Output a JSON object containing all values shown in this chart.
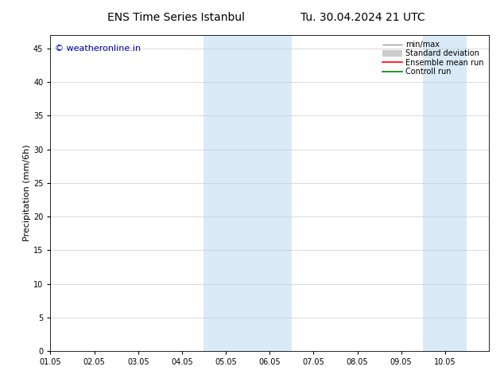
{
  "title_left": "ENS Time Series Istanbul",
  "title_right": "Tu. 30.04.2024 21 UTC",
  "ylabel": "Precipitation (mm/6h)",
  "xlim": [
    0,
    10
  ],
  "ylim": [
    0,
    47
  ],
  "yticks": [
    0,
    5,
    10,
    15,
    20,
    25,
    30,
    35,
    40,
    45
  ],
  "xtick_labels": [
    "01.05",
    "02.05",
    "03.05",
    "04.05",
    "05.05",
    "06.05",
    "07.05",
    "08.05",
    "09.05",
    "10.05"
  ],
  "xtick_positions": [
    0,
    1,
    2,
    3,
    4,
    5,
    6,
    7,
    8,
    9
  ],
  "shaded_bands": [
    {
      "x_start": 3.5,
      "x_end": 5.5
    },
    {
      "x_start": 8.5,
      "x_end": 9.5
    }
  ],
  "shaded_color": "#daeaf7",
  "watermark_text": "© weatheronline.in",
  "watermark_color": "#0000cc",
  "background_color": "#ffffff",
  "legend_items": [
    {
      "label": "min/max",
      "color": "#999999",
      "lw": 1.0
    },
    {
      "label": "Standard deviation",
      "color": "#cccccc",
      "lw": 6
    },
    {
      "label": "Ensemble mean run",
      "color": "#ff0000",
      "lw": 1.2
    },
    {
      "label": "Controll run",
      "color": "#008000",
      "lw": 1.2
    }
  ],
  "title_fontsize": 10,
  "ylabel_fontsize": 8,
  "tick_fontsize": 7,
  "legend_fontsize": 7,
  "watermark_fontsize": 8
}
